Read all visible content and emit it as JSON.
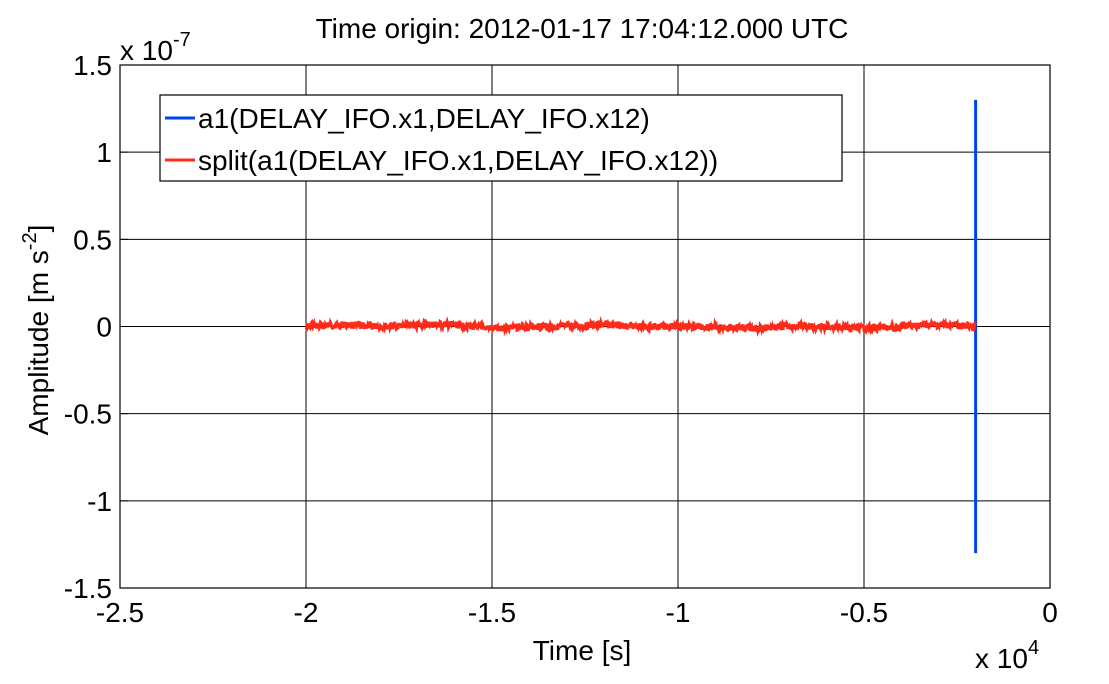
{
  "chart_data": {
    "type": "line",
    "title": "Time origin: 2012-01-17 17:04:12.000 UTC",
    "xlabel": "Time  [s]",
    "ylabel": "Amplitude  [m s",
    "ylabel_sup": "-2",
    "ylabel_close": "]",
    "x_multiplier": {
      "base": "x 10",
      "exponent": "4"
    },
    "y_multiplier": {
      "base": "x 10",
      "exponent": "-7"
    },
    "xlim": [
      -2.5,
      0
    ],
    "ylim": [
      -1.5,
      1.5
    ],
    "x_ticks": [
      -2.5,
      -2,
      -1.5,
      -1,
      -0.5,
      0
    ],
    "y_ticks": [
      -1.5,
      -1,
      -0.5,
      0,
      0.5,
      1,
      1.5
    ],
    "grid": true,
    "legend_position": "top-left",
    "series": [
      {
        "name": "a1(DELAY_IFO.x1,DELAY_IFO.x12)",
        "color": "#0044ee",
        "kind": "vertical-spike",
        "x": [
          -0.2,
          -0.2
        ],
        "y": [
          -1.3,
          1.3
        ]
      },
      {
        "name": "split(a1(DELAY_IFO.x1,DELAY_IFO.x12))",
        "color": "#ff2a1a",
        "kind": "noisy-line",
        "x": [
          -2.0,
          -1.9,
          -1.8,
          -1.7,
          -1.6,
          -1.5,
          -1.4,
          -1.3,
          -1.2,
          -1.1,
          -1.0,
          -0.9,
          -0.8,
          -0.7,
          -0.6,
          -0.5,
          -0.4,
          -0.3,
          -0.2
        ],
        "y": [
          0.0,
          0.01,
          0.0,
          0.01,
          0.01,
          -0.01,
          0.0,
          0.0,
          0.01,
          0.0,
          0.0,
          0.0,
          -0.01,
          0.0,
          0.0,
          -0.01,
          0.0,
          0.01,
          0.0
        ]
      }
    ]
  }
}
